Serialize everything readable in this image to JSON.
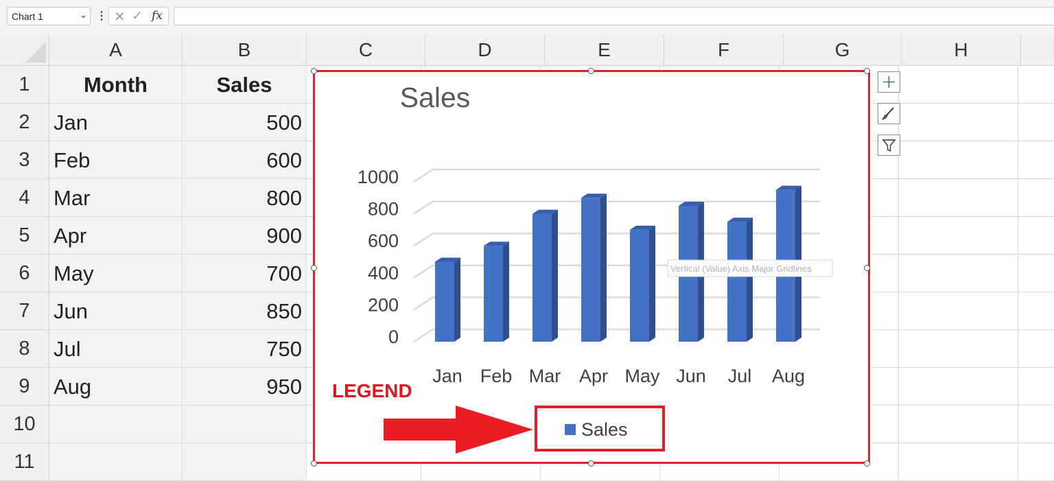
{
  "formula_bar": {
    "name_box": "Chart 1",
    "formula": ""
  },
  "columns": [
    "A",
    "B",
    "C",
    "D",
    "E",
    "F",
    "G",
    "H"
  ],
  "rows": [
    "1",
    "2",
    "3",
    "4",
    "5",
    "6",
    "7",
    "8",
    "9",
    "10",
    "11"
  ],
  "table": {
    "headers": [
      "Month",
      "Sales"
    ],
    "rows": [
      [
        "Jan",
        "500"
      ],
      [
        "Feb",
        "600"
      ],
      [
        "Mar",
        "800"
      ],
      [
        "Apr",
        "900"
      ],
      [
        "May",
        "700"
      ],
      [
        "Jun",
        "850"
      ],
      [
        "Jul",
        "750"
      ],
      [
        "Aug",
        "950"
      ]
    ]
  },
  "chart_data": {
    "type": "bar",
    "title": "Sales",
    "categories": [
      "Jan",
      "Feb",
      "Mar",
      "Apr",
      "May",
      "Jun",
      "Jul",
      "Aug"
    ],
    "series": [
      {
        "name": "Sales",
        "values": [
          500,
          600,
          800,
          900,
          700,
          850,
          750,
          950
        ]
      }
    ],
    "yticks": [
      "0",
      "200",
      "400",
      "600",
      "800",
      "1000"
    ],
    "ylim": [
      0,
      1000
    ],
    "grid": true,
    "legend": "bottom",
    "bar_color": "#4472c4",
    "tooltip": "Vertical (Value) Axis Major Gridlines"
  },
  "annotation": {
    "text": "LEGEND",
    "color": "#e01520"
  }
}
